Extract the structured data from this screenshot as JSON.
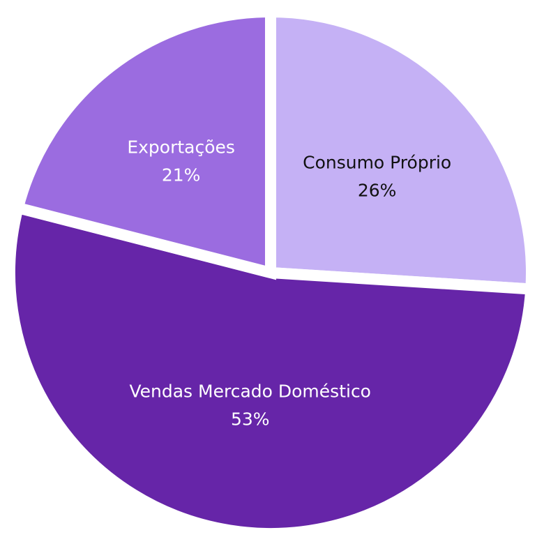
{
  "chart_data": {
    "type": "pie",
    "title": "",
    "slices": [
      {
        "label": "Consumo Próprio",
        "value": 26,
        "value_label": "26%",
        "color": "#c5b1f5",
        "text_color": "#111111"
      },
      {
        "label": "Vendas Mercado Doméstico",
        "value": 53,
        "value_label": "53%",
        "color": "#6625a8",
        "text_color": "#ffffff"
      },
      {
        "label": "Exportações",
        "value": 21,
        "value_label": "21%",
        "color": "#9b6ce0",
        "text_color": "#ffffff"
      }
    ],
    "start_angle_deg": 0,
    "direction": "clockwise",
    "legend": "none",
    "background": "#ffffff"
  }
}
